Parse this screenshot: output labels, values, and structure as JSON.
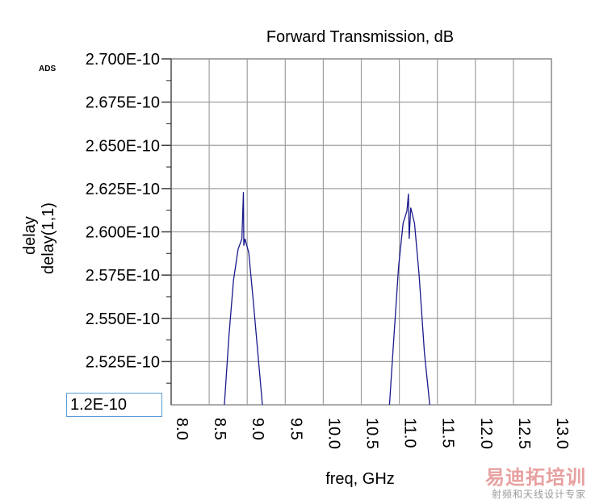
{
  "app_badge": "ADS",
  "ylim_input_value": "1.2E-10",
  "watermark": {
    "main": "易迪拓培训",
    "sub": "射频和天线设计专家"
  },
  "chart_data": {
    "type": "line",
    "title": "Forward Transmission, dB",
    "xlabel": "freq, GHz",
    "ylabels": [
      {
        "text": "delay",
        "color": "#0000cc"
      },
      {
        "text": "delay(1,1)",
        "color": "#dd0000"
      }
    ],
    "xlim": [
      8.0,
      13.0
    ],
    "ylim": [
      2.5e-10,
      2.7e-10
    ],
    "xticks": [
      "8.0",
      "8.5",
      "9.0",
      "9.5",
      "10.0",
      "10.5",
      "11.0",
      "11.5",
      "12.0",
      "12.5",
      "13.0"
    ],
    "xtick_values": [
      8.0,
      8.5,
      9.0,
      9.5,
      10.0,
      10.5,
      11.0,
      11.5,
      12.0,
      12.5,
      13.0
    ],
    "yticks": [
      "2.700E-10",
      "2.675E-10",
      "2.650E-10",
      "2.625E-10",
      "2.600E-10",
      "2.575E-10",
      "2.550E-10",
      "2.525E-10"
    ],
    "ytick_values": [
      2.7e-10,
      2.675e-10,
      2.65e-10,
      2.625e-10,
      2.6e-10,
      2.575e-10,
      2.55e-10,
      2.525e-10
    ],
    "grid": true,
    "series": [
      {
        "color": "#1a1a8c",
        "segments": [
          [
            [
              8.7,
              2.5e-10
            ],
            [
              8.76,
              2.54e-10
            ],
            [
              8.82,
              2.572e-10
            ],
            [
              8.88,
              2.59e-10
            ],
            [
              8.93,
              2.596e-10
            ],
            [
              8.95,
              2.623e-10
            ],
            [
              8.955,
              2.592e-10
            ],
            [
              8.97,
              2.596e-10
            ],
            [
              9.02,
              2.588e-10
            ],
            [
              9.08,
              2.56e-10
            ],
            [
              9.15,
              2.525e-10
            ],
            [
              9.2,
              2.5e-10
            ]
          ],
          [
            [
              10.87,
              2.5e-10
            ],
            [
              10.93,
              2.54e-10
            ],
            [
              10.99,
              2.58e-10
            ],
            [
              11.05,
              2.605e-10
            ],
            [
              11.1,
              2.612e-10
            ],
            [
              11.12,
              2.622e-10
            ],
            [
              11.13,
              2.596e-10
            ],
            [
              11.15,
              2.614e-10
            ],
            [
              11.2,
              2.605e-10
            ],
            [
              11.26,
              2.575e-10
            ],
            [
              11.33,
              2.53e-10
            ],
            [
              11.4,
              2.5e-10
            ]
          ]
        ]
      }
    ]
  }
}
